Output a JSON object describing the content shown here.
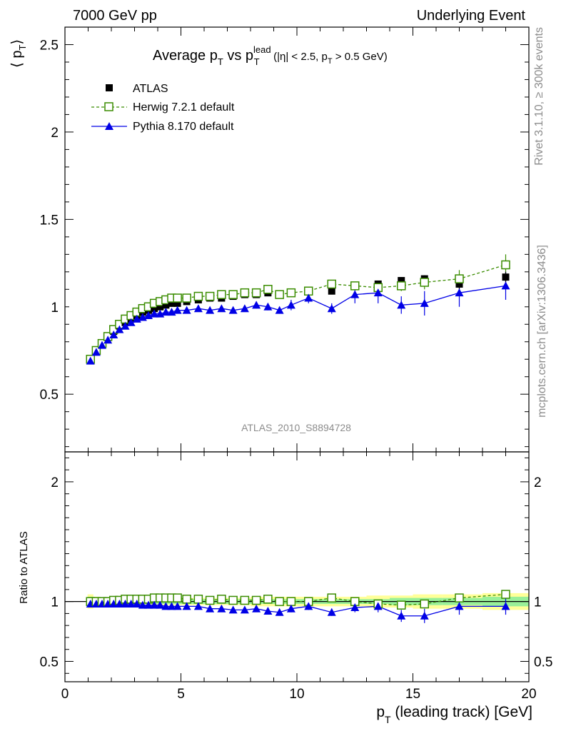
{
  "header": {
    "left": "7000 GeV pp",
    "right": "Underlying Event"
  },
  "side_labels": {
    "rivet": "Rivet 3.1.10, ≥ 300k events",
    "mcplots": "mcplots.cern.ch [arXiv:1306.3436]"
  },
  "title": {
    "prefix": "Average p",
    "sub1": "T",
    "vs": " vs p",
    "sup": "lead",
    "sub2": "T",
    "cut_a": "(|η| < 2.5, p",
    "cut_sub": "T",
    "cut_b": " > 0.5 GeV)"
  },
  "ylabel_main": {
    "open": "⟨ p",
    "sub": "T",
    "close": "⟩"
  },
  "ylabel_ratio": "Ratio to ATLAS",
  "xlabel": {
    "p": "p",
    "sub": "T",
    "rest": " (leading track) [GeV]"
  },
  "watermark": "ATLAS_2010_S8894728",
  "legend": {
    "placement": "top-left",
    "items": [
      {
        "label": "ATLAS",
        "marker": "filled-square",
        "color": "#000000"
      },
      {
        "label": "Herwig 7.2.1 default",
        "marker": "open-square-dashed",
        "color": "#3a8c00"
      },
      {
        "label": "Pythia 8.170 default",
        "marker": "filled-triangle",
        "color": "#0000e6"
      }
    ]
  },
  "chart_data": {
    "type": "scatter",
    "xlim": [
      0,
      20
    ],
    "xticks": [
      0,
      5,
      10,
      15,
      20
    ],
    "main_panel": {
      "ylim": [
        0.17,
        2.6
      ],
      "yticks": [
        0.5,
        1,
        1.5,
        2,
        2.5
      ],
      "ytick_labels": [
        "0.5",
        "1",
        "1.5",
        "2",
        "2.5"
      ]
    },
    "ratio_panel": {
      "ylim": [
        0.33,
        2.25
      ],
      "yticks": [
        0.5,
        1,
        2
      ],
      "ytick_labels": [
        "0.5",
        "1",
        "2"
      ]
    },
    "x": [
      1.1,
      1.35,
      1.6,
      1.85,
      2.1,
      2.35,
      2.6,
      2.85,
      3.1,
      3.35,
      3.6,
      3.85,
      4.1,
      4.35,
      4.6,
      4.85,
      5.25,
      5.75,
      6.25,
      6.75,
      7.25,
      7.75,
      8.25,
      8.75,
      9.25,
      9.75,
      10.5,
      11.5,
      12.5,
      13.5,
      14.5,
      15.5,
      17.0,
      19.0
    ],
    "series": [
      {
        "name": "ATLAS",
        "values": [
          0.7,
          0.75,
          0.79,
          0.83,
          0.86,
          0.89,
          0.91,
          0.93,
          0.95,
          0.97,
          0.98,
          0.99,
          1.0,
          1.01,
          1.02,
          1.02,
          1.03,
          1.04,
          1.05,
          1.05,
          1.06,
          1.07,
          1.07,
          1.08,
          1.07,
          1.08,
          1.09,
          1.09,
          1.12,
          1.13,
          1.15,
          1.16,
          1.13,
          1.17
        ],
        "errors": [
          0.01,
          0.01,
          0.01,
          0.01,
          0.01,
          0.01,
          0.01,
          0.01,
          0.01,
          0.01,
          0.01,
          0.01,
          0.01,
          0.01,
          0.01,
          0.01,
          0.01,
          0.01,
          0.01,
          0.01,
          0.01,
          0.01,
          0.01,
          0.01,
          0.01,
          0.01,
          0.01,
          0.01,
          0.02,
          0.02,
          0.02,
          0.02,
          0.03,
          0.03
        ],
        "ratio_band_inner": [
          0.04,
          0.02,
          0.02,
          0.02,
          0.02,
          0.02,
          0.02,
          0.02,
          0.02,
          0.02,
          0.02,
          0.02,
          0.02,
          0.02,
          0.02,
          0.02,
          0.02,
          0.02,
          0.02,
          0.02,
          0.02,
          0.02,
          0.02,
          0.02,
          0.02,
          0.02,
          0.02,
          0.02,
          0.02,
          0.02,
          0.03,
          0.03,
          0.03,
          0.04
        ],
        "ratio_band_outer": [
          0.06,
          0.04,
          0.03,
          0.03,
          0.03,
          0.03,
          0.03,
          0.03,
          0.03,
          0.03,
          0.03,
          0.03,
          0.03,
          0.03,
          0.03,
          0.03,
          0.03,
          0.03,
          0.03,
          0.03,
          0.03,
          0.03,
          0.04,
          0.04,
          0.04,
          0.04,
          0.04,
          0.04,
          0.04,
          0.05,
          0.05,
          0.06,
          0.06,
          0.07
        ]
      },
      {
        "name": "Herwig 7.2.1 default",
        "values": [
          0.7,
          0.75,
          0.79,
          0.83,
          0.87,
          0.9,
          0.93,
          0.95,
          0.97,
          0.99,
          1.0,
          1.02,
          1.03,
          1.04,
          1.05,
          1.05,
          1.05,
          1.06,
          1.06,
          1.07,
          1.07,
          1.08,
          1.08,
          1.1,
          1.07,
          1.08,
          1.09,
          1.13,
          1.12,
          1.11,
          1.12,
          1.14,
          1.16,
          1.24
        ],
        "errors": [
          0.01,
          0.01,
          0.01,
          0.01,
          0.01,
          0.01,
          0.01,
          0.01,
          0.01,
          0.01,
          0.01,
          0.01,
          0.01,
          0.01,
          0.01,
          0.01,
          0.01,
          0.01,
          0.01,
          0.01,
          0.01,
          0.01,
          0.01,
          0.01,
          0.01,
          0.01,
          0.02,
          0.02,
          0.02,
          0.03,
          0.03,
          0.04,
          0.05,
          0.06
        ],
        "ratio": [
          1.0,
          1.0,
          1.0,
          1.0,
          1.01,
          1.01,
          1.02,
          1.02,
          1.02,
          1.02,
          1.02,
          1.03,
          1.03,
          1.03,
          1.03,
          1.03,
          1.02,
          1.02,
          1.01,
          1.02,
          1.01,
          1.01,
          1.01,
          1.02,
          1.0,
          1.0,
          1.0,
          1.03,
          1.0,
          0.98,
          0.97,
          0.98,
          1.03,
          1.06
        ]
      },
      {
        "name": "Pythia 8.170 default",
        "values": [
          0.69,
          0.74,
          0.78,
          0.81,
          0.84,
          0.87,
          0.89,
          0.91,
          0.93,
          0.94,
          0.95,
          0.96,
          0.96,
          0.97,
          0.97,
          0.98,
          0.98,
          0.99,
          0.98,
          0.99,
          0.98,
          0.99,
          1.01,
          1.0,
          0.98,
          1.01,
          1.05,
          0.99,
          1.07,
          1.08,
          1.01,
          1.02,
          1.08,
          1.12
        ],
        "errors": [
          0.01,
          0.01,
          0.01,
          0.01,
          0.01,
          0.01,
          0.01,
          0.01,
          0.01,
          0.01,
          0.01,
          0.01,
          0.01,
          0.01,
          0.01,
          0.01,
          0.01,
          0.01,
          0.01,
          0.01,
          0.01,
          0.01,
          0.02,
          0.02,
          0.02,
          0.03,
          0.03,
          0.03,
          0.05,
          0.06,
          0.05,
          0.07,
          0.08,
          0.08
        ],
        "ratio": [
          0.98,
          0.98,
          0.98,
          0.98,
          0.98,
          0.98,
          0.98,
          0.98,
          0.98,
          0.97,
          0.97,
          0.97,
          0.97,
          0.96,
          0.96,
          0.96,
          0.96,
          0.96,
          0.94,
          0.94,
          0.93,
          0.93,
          0.94,
          0.92,
          0.91,
          0.94,
          0.96,
          0.91,
          0.95,
          0.96,
          0.88,
          0.88,
          0.96,
          0.96
        ],
        "ratio_errors": [
          0.01,
          0.01,
          0.01,
          0.01,
          0.01,
          0.01,
          0.01,
          0.01,
          0.01,
          0.01,
          0.01,
          0.01,
          0.01,
          0.01,
          0.01,
          0.01,
          0.01,
          0.01,
          0.01,
          0.01,
          0.01,
          0.01,
          0.02,
          0.02,
          0.02,
          0.03,
          0.03,
          0.03,
          0.04,
          0.05,
          0.05,
          0.06,
          0.07,
          0.07
        ]
      }
    ],
    "colors": {
      "ATLAS": "#000000",
      "Herwig": "#3a8c00",
      "Pythia": "#0000e6",
      "band_outer": "#ffff99",
      "band_inner": "#99f099"
    }
  }
}
